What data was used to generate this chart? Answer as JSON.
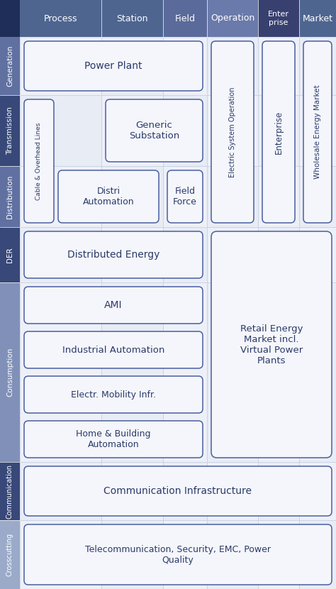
{
  "fig_width": 4.74,
  "fig_height": 8.3,
  "dpi": 100,
  "bg_color": "#ffffff",
  "grid_color": "#c5cde0",
  "box_border": "#4a5fa0",
  "box_fill": "#f5f6fb",
  "text_color": "#2a3a6a",
  "col_header_colors": [
    "#4e6590",
    "#4e6590",
    "#5a6a9a",
    "#6a7aaa",
    "#384070",
    "#4e6590"
  ],
  "col_header_labels": [
    "Process",
    "Station",
    "Field",
    "Operation",
    "Enter\nprise",
    "Market"
  ],
  "row_label_colors": [
    "#6070a0",
    "#384878",
    "#6070a0",
    "#384878",
    "#8090b8",
    "#384878",
    "#9aaac8"
  ],
  "row_labels": [
    "Generation",
    "Transmission",
    "Distribution",
    "DER",
    "Consumption",
    "Communication",
    "Crosscutting"
  ],
  "corner_color": "#1e2e58"
}
